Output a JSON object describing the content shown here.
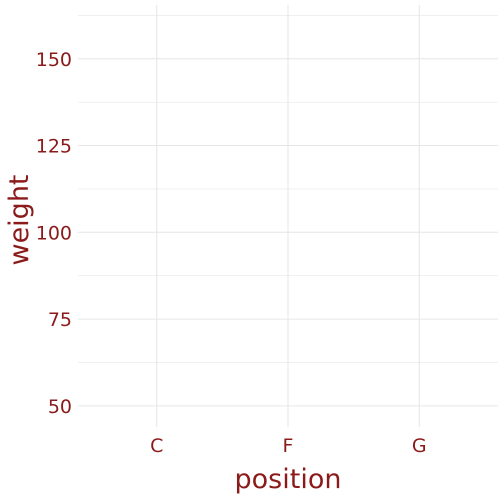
{
  "chart_data": {
    "type": "scatter",
    "title": "",
    "xlabel": "position",
    "ylabel": "weight",
    "categories": [
      "C",
      "F",
      "G"
    ],
    "ylim": [
      43.9,
      165.5
    ],
    "y_ticks": [
      50,
      75,
      100,
      125,
      150
    ],
    "y_minor_ticks": [
      62.5,
      87.5,
      112.5,
      137.5,
      162.5
    ],
    "y_tick_labels": [
      "50",
      "75",
      "100",
      "125",
      "150"
    ],
    "grid": true,
    "legend": "none",
    "series": [],
    "colors": {
      "text": "#8b1a1a",
      "grid": "#e6e6e6",
      "background": "#ffffff"
    }
  }
}
